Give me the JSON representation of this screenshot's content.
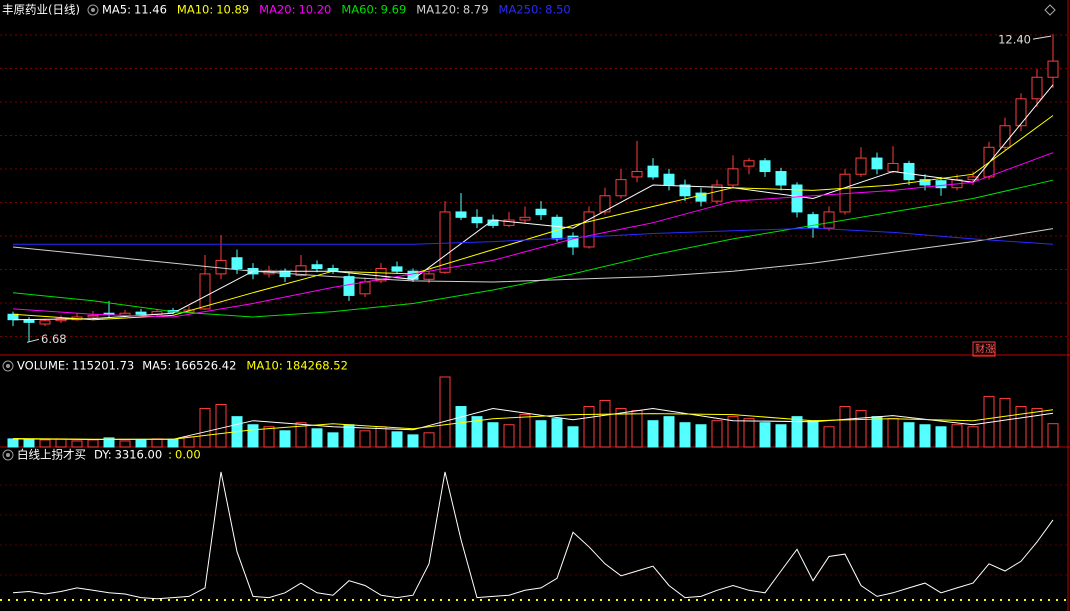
{
  "chart_data": [
    {
      "type": "candlestick",
      "title": "丰原药业(日线)",
      "ylim": [
        6.5,
        12.7
      ],
      "up_color": "#ff3c3c",
      "down_color": "#54ffff",
      "open": [
        7.2,
        7.1,
        7.02,
        7.08,
        7.1,
        7.15,
        7.22,
        7.18,
        7.24,
        7.2,
        7.27,
        7.24,
        7.3,
        7.95,
        8.25,
        8.05,
        7.95,
        8.0,
        7.92,
        8.12,
        8.05,
        7.9,
        7.58,
        7.82,
        8.08,
        8.0,
        7.85,
        7.98,
        9.1,
        9.0,
        8.95,
        8.85,
        8.95,
        9.15,
        9.0,
        8.65,
        8.45,
        9.1,
        9.4,
        9.75,
        9.95,
        9.8,
        9.6,
        9.45,
        9.3,
        9.6,
        9.95,
        10.05,
        9.85,
        9.6,
        9.05,
        8.8,
        9.1,
        9.8,
        10.1,
        9.85,
        10.0,
        9.7,
        9.68,
        9.55,
        9.7,
        9.75,
        10.3,
        10.7,
        11.2,
        11.6
      ],
      "high": [
        7.25,
        7.15,
        7.12,
        7.18,
        7.22,
        7.26,
        7.45,
        7.28,
        7.3,
        7.3,
        7.32,
        7.35,
        8.3,
        8.67,
        8.4,
        8.15,
        8.1,
        8.05,
        8.3,
        8.2,
        8.12,
        7.98,
        7.88,
        8.15,
        8.18,
        8.05,
        8.0,
        9.3,
        9.45,
        9.15,
        9.05,
        9.1,
        9.2,
        9.3,
        9.05,
        8.72,
        9.2,
        9.55,
        9.9,
        10.42,
        10.1,
        9.9,
        9.7,
        9.55,
        9.7,
        10.15,
        10.1,
        10.1,
        9.92,
        9.65,
        9.1,
        9.2,
        9.9,
        10.3,
        10.2,
        10.32,
        10.05,
        9.8,
        9.75,
        9.8,
        9.85,
        10.4,
        10.85,
        11.3,
        11.75,
        12.4
      ],
      "low": [
        6.98,
        6.68,
        6.98,
        7.04,
        7.08,
        7.1,
        7.15,
        7.15,
        7.16,
        7.18,
        7.2,
        7.22,
        7.28,
        7.85,
        7.95,
        7.85,
        7.88,
        7.8,
        7.9,
        7.98,
        7.95,
        7.45,
        7.52,
        7.78,
        7.95,
        7.8,
        7.78,
        7.95,
        8.95,
        8.8,
        8.8,
        8.82,
        8.9,
        8.95,
        8.55,
        8.3,
        8.42,
        9.05,
        9.35,
        9.65,
        9.7,
        9.5,
        9.3,
        9.2,
        9.25,
        9.55,
        9.8,
        9.75,
        9.5,
        9.0,
        8.62,
        8.75,
        9.05,
        9.75,
        9.8,
        9.82,
        9.6,
        9.5,
        9.4,
        9.5,
        9.6,
        9.7,
        10.25,
        10.6,
        11.05,
        11.4
      ],
      "close": [
        7.1,
        7.05,
        7.08,
        7.12,
        7.15,
        7.18,
        7.2,
        7.22,
        7.2,
        7.25,
        7.24,
        7.28,
        7.95,
        8.2,
        8.05,
        7.95,
        8.0,
        7.9,
        8.1,
        8.05,
        8.0,
        7.55,
        7.8,
        8.05,
        8.0,
        7.85,
        7.95,
        9.1,
        9.0,
        8.9,
        8.85,
        8.95,
        9.0,
        9.05,
        8.6,
        8.45,
        9.1,
        9.4,
        9.7,
        9.85,
        9.75,
        9.6,
        9.4,
        9.3,
        9.6,
        9.9,
        10.05,
        9.85,
        9.6,
        9.1,
        8.8,
        9.1,
        9.8,
        10.1,
        9.9,
        10.0,
        9.7,
        9.6,
        9.55,
        9.7,
        9.75,
        10.3,
        10.7,
        11.2,
        11.6,
        11.9
      ],
      "series": [
        {
          "name": "MA5:",
          "color": "#ffffff",
          "legend_value": {
            "value": 11.46,
            "label": "11.46"
          },
          "x": [
            0,
            5,
            10,
            15,
            20,
            25,
            30,
            35,
            40,
            45,
            50,
            55,
            60,
            65
          ],
          "values": [
            7.1,
            7.12,
            7.22,
            8.0,
            8.0,
            7.85,
            8.95,
            8.8,
            9.6,
            9.55,
            9.35,
            9.85,
            9.65,
            11.46
          ]
        },
        {
          "name": "MA10:",
          "color": "#ffff00",
          "legend_value": {
            "value": 10.89,
            "label": "10.89"
          },
          "x": [
            0,
            5,
            10,
            15,
            20,
            25,
            30,
            35,
            40,
            45,
            50,
            55,
            60,
            65
          ],
          "values": [
            7.2,
            7.1,
            7.18,
            7.6,
            8.0,
            7.95,
            8.4,
            8.85,
            9.2,
            9.55,
            9.5,
            9.6,
            9.8,
            10.89
          ]
        },
        {
          "name": "MA20:",
          "color": "#ff00ff",
          "legend_value": {
            "value": 10.2,
            "label": "10.20"
          },
          "x": [
            0,
            5,
            10,
            15,
            20,
            25,
            30,
            35,
            40,
            45,
            50,
            55,
            60,
            65
          ],
          "values": [
            7.3,
            7.2,
            7.15,
            7.4,
            7.7,
            7.95,
            8.2,
            8.6,
            8.9,
            9.3,
            9.4,
            9.5,
            9.65,
            10.2
          ]
        },
        {
          "name": "MA60:",
          "color": "#00e000",
          "legend_value": {
            "value": 9.69,
            "label": "9.69"
          },
          "x": [
            0,
            5,
            10,
            15,
            20,
            25,
            30,
            35,
            40,
            45,
            50,
            55,
            60,
            65
          ],
          "values": [
            7.6,
            7.45,
            7.25,
            7.15,
            7.25,
            7.4,
            7.65,
            7.95,
            8.3,
            8.6,
            8.85,
            9.1,
            9.35,
            9.69
          ]
        },
        {
          "name": "MA120:",
          "color": "#d0d0d0",
          "legend_value": {
            "value": 8.79,
            "label": "8.79"
          },
          "x": [
            0,
            5,
            10,
            15,
            20,
            25,
            30,
            35,
            40,
            45,
            50,
            55,
            60,
            65
          ],
          "values": [
            8.45,
            8.3,
            8.15,
            8.0,
            7.9,
            7.82,
            7.8,
            7.85,
            7.9,
            8.0,
            8.15,
            8.35,
            8.55,
            8.79
          ]
        },
        {
          "name": "MA250:",
          "color": "#2a2aff",
          "legend_value": {
            "value": 8.5,
            "label": "8.50"
          },
          "x": [
            0,
            5,
            10,
            15,
            20,
            25,
            30,
            35,
            40,
            45,
            50,
            55,
            60,
            65
          ],
          "values": [
            8.5,
            8.5,
            8.5,
            8.5,
            8.5,
            8.5,
            8.55,
            8.62,
            8.7,
            8.75,
            8.8,
            8.72,
            8.6,
            8.5
          ]
        }
      ],
      "annotations": [
        {
          "text": "12.40"
        },
        {
          "text": "6.68"
        }
      ],
      "badge": "财涨"
    },
    {
      "type": "volume",
      "title": "VOLUME:",
      "legend_value": {
        "value": 115201.73,
        "label": "115201.73"
      },
      "ylim": [
        0,
        420000
      ],
      "values": [
        40000,
        38000,
        35000,
        40000,
        30000,
        35000,
        45000,
        30000,
        35000,
        40000,
        38000,
        50000,
        190000,
        210000,
        150000,
        110000,
        100000,
        80000,
        120000,
        90000,
        70000,
        110000,
        80000,
        100000,
        75000,
        60000,
        70000,
        346000,
        200000,
        150000,
        120000,
        110000,
        160000,
        130000,
        140000,
        100000,
        200000,
        230000,
        190000,
        180000,
        130000,
        150000,
        120000,
        110000,
        130000,
        150000,
        140000,
        120000,
        110000,
        150000,
        130000,
        100000,
        200000,
        180000,
        150000,
        140000,
        120000,
        110000,
        100000,
        110000,
        100000,
        250000,
        240000,
        200000,
        190000,
        115201.73
      ],
      "series": [
        {
          "name": "MA5:",
          "color": "#ffffff",
          "legend_value": {
            "value": 166526.42,
            "label": "166526.42"
          },
          "x": [
            0,
            5,
            10,
            15,
            20,
            25,
            30,
            35,
            40,
            45,
            50,
            55,
            60,
            65
          ],
          "values": [
            40000,
            37000,
            38000,
            130000,
            100000,
            85000,
            190000,
            135000,
            190000,
            130000,
            125000,
            155000,
            110000,
            166526.42
          ]
        },
        {
          "name": "MA10:",
          "color": "#ffff00",
          "legend_value": {
            "value": 184268.52,
            "label": "184268.52"
          },
          "x": [
            0,
            5,
            10,
            15,
            20,
            25,
            30,
            35,
            40,
            45,
            50,
            55,
            60,
            65
          ],
          "values": [
            42000,
            38000,
            38000,
            85000,
            115000,
            90000,
            140000,
            160000,
            165000,
            160000,
            130000,
            140000,
            130000,
            184268.52
          ]
        }
      ]
    },
    {
      "type": "line",
      "title": "白线上拐才买",
      "ylim": [
        0,
        6000
      ],
      "series": [
        {
          "name": "DY:",
          "color": "#ffffff",
          "legend_value": {
            "value": 3316,
            "label": "3316.00"
          },
          "values": [
            300,
            350,
            250,
            350,
            500,
            400,
            300,
            250,
            100,
            50,
            100,
            150,
            500,
            5300,
            2000,
            150,
            100,
            300,
            700,
            300,
            200,
            800,
            600,
            200,
            100,
            200,
            1500,
            5300,
            2500,
            100,
            150,
            200,
            400,
            500,
            900,
            2800,
            2200,
            1500,
            1000,
            1200,
            1400,
            600,
            100,
            150,
            400,
            600,
            400,
            300,
            1200,
            2100,
            800,
            1800,
            1900,
            600,
            150,
            300,
            500,
            700,
            300,
            500,
            700,
            1500,
            1200,
            1600,
            2400,
            3316
          ]
        }
      ],
      "baseline": {
        "name": ":",
        "color": "#ffff00",
        "value": 0,
        "label": "0.00"
      }
    }
  ]
}
